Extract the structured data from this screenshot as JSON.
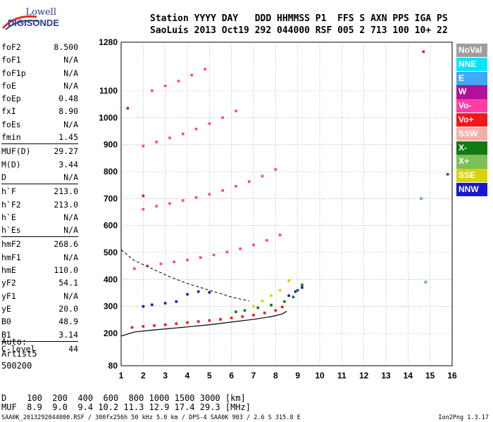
{
  "logo": {
    "line1": "Lowell",
    "line2": "DIGISONDE"
  },
  "header": {
    "line1": "Station YYYY DAY   DDD HHMMSS P1  FFS S AXN PPS IGA PS",
    "line2": "SaoLuis 2013 Oct19 292 044000 RSF 005 2 713 100 10+ 22"
  },
  "params": [
    {
      "label": "foF2",
      "value": "8.500"
    },
    {
      "label": "foF1",
      "value": "N/A"
    },
    {
      "label": "foF1p",
      "value": "N/A"
    },
    {
      "label": "foE",
      "value": "N/A"
    },
    {
      "label": "foEp",
      "value": "0.48"
    },
    {
      "label": "fxI",
      "value": "8.90"
    },
    {
      "label": "foEs",
      "value": "N/A"
    },
    {
      "label": "fmin",
      "value": "1.45"
    },
    {
      "label": "MUF(D)",
      "value": "29.27"
    },
    {
      "label": "M(D)",
      "value": "3.44"
    },
    {
      "label": "D",
      "value": "N/A"
    },
    {
      "label": "h`F",
      "value": "213.0"
    },
    {
      "label": "h`F2",
      "value": "213.0"
    },
    {
      "label": "h`E",
      "value": "N/A"
    },
    {
      "label": "h`Es",
      "value": "N/A"
    },
    {
      "label": "hmF2",
      "value": "268.6"
    },
    {
      "label": "hmF1",
      "value": "N/A"
    },
    {
      "label": "hmE",
      "value": "110.0"
    },
    {
      "label": "yF2",
      "value": "54.1"
    },
    {
      "label": "yF1",
      "value": "N/A"
    },
    {
      "label": "yE",
      "value": "20.0"
    },
    {
      "label": "B0",
      "value": "48.9"
    },
    {
      "label": "B1",
      "value": "3.14"
    },
    {
      "label": "C-level",
      "value": "44"
    }
  ],
  "auto": {
    "line1": "Auto:",
    "line2": "Artist5",
    "line3": "500200"
  },
  "dmuf": {
    "d_line": "D    100  200  400  600  800 1000 1500 3000 [km]",
    "muf_line": "MUF  8.9  9.0  9.4 10.2 11.3 12.9 17.4 29.3 [MHz]"
  },
  "footer": {
    "file": "SAA0K_2013292044000.RSF / 300fx256h 50 kHz 5.0 km / DPS-4 SAA0K 903 / 2.6 S 315.8 E",
    "version": "Ion2Png 1.3.17"
  },
  "legend": [
    {
      "label": "NoVal",
      "color": "#9e9e9e"
    },
    {
      "label": "NNE",
      "color": "#00e5ff"
    },
    {
      "label": "E",
      "color": "#3fa9f5"
    },
    {
      "label": "W",
      "color": "#b0129a"
    },
    {
      "label": "Vo-",
      "color": "#ff3da8"
    },
    {
      "label": "Vo+",
      "color": "#f01818"
    },
    {
      "label": "SSW",
      "color": "#f4b0a8"
    },
    {
      "label": "X-",
      "color": "#127a12"
    },
    {
      "label": "X+",
      "color": "#7cc05a"
    },
    {
      "label": "SSE",
      "color": "#d8d400"
    },
    {
      "label": "NNW",
      "color": "#1818d0"
    }
  ],
  "chart_data": {
    "type": "scatter",
    "xlabel": "",
    "ylabel": "",
    "xlim": [
      1,
      16
    ],
    "ylim": [
      80,
      1280
    ],
    "x_ticks": [
      1,
      2,
      3,
      4,
      5,
      6,
      7,
      8,
      9,
      10,
      11,
      12,
      13,
      14,
      15,
      16
    ],
    "y_ticks": [
      80,
      200,
      300,
      400,
      500,
      600,
      700,
      800,
      900,
      1000,
      1100,
      1280
    ],
    "grid": true,
    "legend_position": "right",
    "series": [
      {
        "color": "#f01818",
        "points": [
          [
            1.5,
            222
          ],
          [
            2.0,
            226
          ],
          [
            2.5,
            229
          ],
          [
            3.0,
            232
          ],
          [
            3.5,
            236
          ],
          [
            4.0,
            240
          ],
          [
            4.5,
            244
          ],
          [
            5.0,
            248
          ],
          [
            5.5,
            252
          ],
          [
            6.0,
            257
          ],
          [
            6.5,
            262
          ],
          [
            7.0,
            268
          ],
          [
            7.5,
            276
          ],
          [
            8.0,
            285
          ],
          [
            8.3,
            298
          ]
        ]
      },
      {
        "color": "#ff3da8",
        "points": [
          [
            1.6,
            440
          ],
          [
            2.2,
            450
          ],
          [
            2.8,
            458
          ],
          [
            3.4,
            465
          ],
          [
            4.0,
            472
          ],
          [
            4.6,
            481
          ],
          [
            5.2,
            491
          ],
          [
            5.8,
            502
          ],
          [
            6.4,
            514
          ],
          [
            7.0,
            528
          ],
          [
            7.6,
            545
          ],
          [
            8.2,
            565
          ]
        ]
      },
      {
        "color": "#ff3da8",
        "points": [
          [
            2.0,
            660
          ],
          [
            2.6,
            672
          ],
          [
            3.2,
            682
          ],
          [
            3.8,
            693
          ],
          [
            4.4,
            704
          ],
          [
            5.0,
            716
          ],
          [
            5.6,
            730
          ],
          [
            6.2,
            746
          ],
          [
            6.8,
            763
          ],
          [
            7.4,
            783
          ],
          [
            8.0,
            808
          ]
        ]
      },
      {
        "color": "#ff3da8",
        "points": [
          [
            2.0,
            895
          ],
          [
            2.6,
            910
          ],
          [
            3.2,
            925
          ],
          [
            3.8,
            940
          ],
          [
            4.4,
            958
          ],
          [
            5.0,
            978
          ],
          [
            5.6,
            1000
          ],
          [
            6.2,
            1025
          ]
        ]
      },
      {
        "color": "#ff3da8",
        "points": [
          [
            2.4,
            1100
          ],
          [
            3.0,
            1118
          ],
          [
            3.6,
            1136
          ],
          [
            4.2,
            1158
          ],
          [
            4.8,
            1180
          ]
        ]
      },
      {
        "color": "#127a12",
        "points": [
          [
            6.2,
            280
          ],
          [
            6.6,
            285
          ],
          [
            7.2,
            295
          ],
          [
            7.8,
            305
          ],
          [
            8.4,
            318
          ],
          [
            8.8,
            335
          ],
          [
            9.0,
            360
          ],
          [
            9.2,
            380
          ]
        ]
      },
      {
        "color": "#1818d0",
        "points": [
          [
            2.0,
            300
          ],
          [
            2.4,
            306
          ],
          [
            3.0,
            312
          ],
          [
            3.5,
            318
          ],
          [
            4.0,
            345
          ],
          [
            4.5,
            355
          ],
          [
            5.0,
            352
          ],
          [
            8.6,
            340
          ],
          [
            8.9,
            355
          ],
          [
            9.2,
            370
          ]
        ]
      },
      {
        "color": "#d8d400",
        "points": [
          [
            7.0,
            300
          ],
          [
            7.4,
            320
          ],
          [
            7.8,
            340
          ],
          [
            8.2,
            360
          ],
          [
            8.6,
            395
          ]
        ]
      },
      {
        "color": "#b0129a",
        "points": [
          [
            1.3,
            1035
          ],
          [
            14.7,
            1245
          ],
          [
            15.8,
            790
          ],
          [
            2.0,
            710
          ]
        ]
      },
      {
        "color": "#3fa9f5",
        "points": [
          [
            14.8,
            390
          ],
          [
            14.6,
            700
          ]
        ]
      }
    ]
  }
}
